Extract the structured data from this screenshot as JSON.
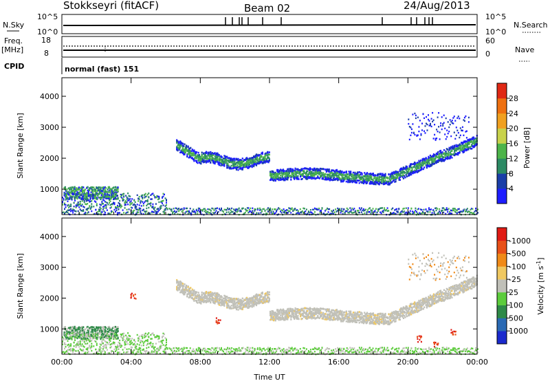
{
  "header": {
    "station": "Stokkseyri (fitACF)",
    "beam": "Beam 02",
    "date": "24/Aug/2013"
  },
  "strip_labels": {
    "nsky": "N.Sky",
    "nsky_hi": "10^5",
    "nsky_lo": "10^0",
    "nsearch": "N.Search",
    "nsearch_hi": "10^5",
    "nsearch_lo": "10^0",
    "freq_1": "Freq.",
    "freq_2": "[MHz]",
    "freq_hi": "18",
    "freq_lo": "8",
    "nave": "Nave",
    "nave_hi": "60",
    "nave_lo": "0",
    "cpid": "CPID",
    "cpid_value": "normal (fast) 151"
  },
  "chart_data": [
    {
      "type": "heatmap",
      "title": "",
      "ylabel": "Slant Range [km]",
      "xlabel": "",
      "x_range": [
        "00:00",
        "00:00"
      ],
      "ylim": [
        180,
        4600
      ],
      "yticks": [
        1000,
        2000,
        3000,
        4000
      ],
      "colorbar": {
        "label": "Power [dB]",
        "ticks": [
          "4",
          "8",
          "12",
          "16",
          "20",
          "24",
          "28"
        ],
        "colors": [
          "#1d1dff",
          "#1a3ea8",
          "#2c8a64",
          "#4db44a",
          "#c8d24b",
          "#f0a020",
          "#ee7010",
          "#e02814"
        ]
      }
    },
    {
      "type": "heatmap",
      "title": "",
      "ylabel": "Slant Range [km]",
      "xlabel": "Time UT",
      "xticks": [
        "00:00",
        "04:00",
        "08:00",
        "12:00",
        "16:00",
        "20:00",
        "00:00"
      ],
      "ylim": [
        180,
        4600
      ],
      "yticks": [
        1000,
        2000,
        3000,
        4000
      ],
      "colorbar": {
        "label": "Velocity [m s^-1]",
        "ticks": [
          "1000",
          "500",
          "100",
          "25",
          "-25",
          "-100",
          "-500",
          "-1000"
        ],
        "colors": [
          "#1a2acd",
          "#2a6ab4",
          "#2e8a48",
          "#5ccc3c",
          "#c0c0b8",
          "#f0c860",
          "#f08a18",
          "#e85018",
          "#e01a14"
        ]
      }
    }
  ]
}
